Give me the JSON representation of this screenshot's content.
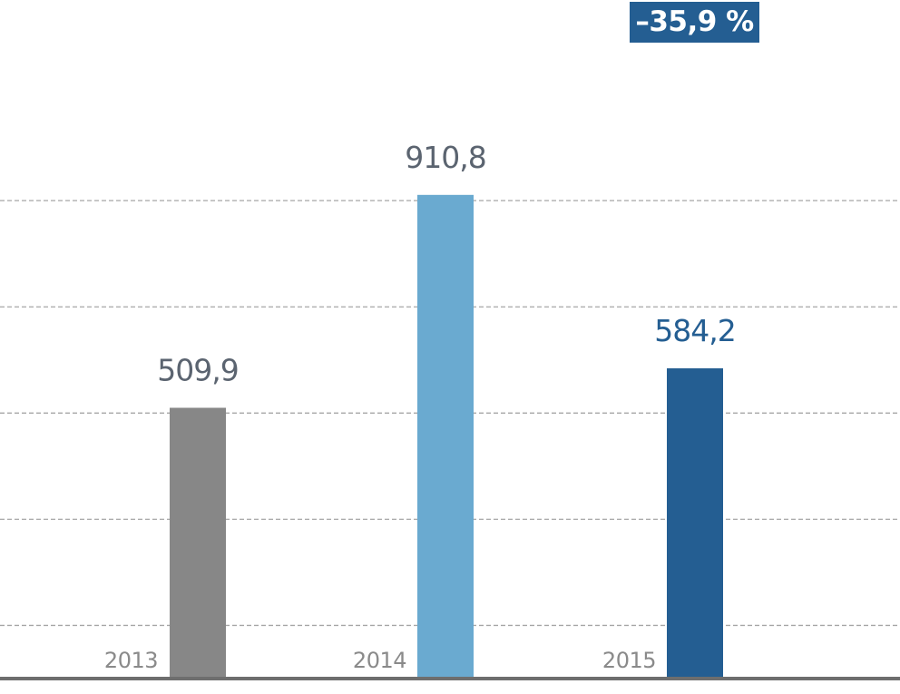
{
  "chart_data": {
    "type": "bar",
    "categories": [
      "2013",
      "2014",
      "2015"
    ],
    "values": [
      509.9,
      910.8,
      584.2
    ],
    "value_labels": [
      "509,9",
      "910,8",
      "584,2"
    ],
    "ylim": [
      0,
      1000
    ],
    "grid": true,
    "grid_values": [
      100,
      300,
      500,
      700,
      900
    ],
    "colors": [
      "#878787",
      "#6aaad0",
      "#245e92"
    ],
    "label_colors": [
      "#5b6470",
      "#5b6470",
      "#245e92"
    ],
    "change_badge": {
      "text": "–35,9 %",
      "color": "#245e92"
    }
  }
}
